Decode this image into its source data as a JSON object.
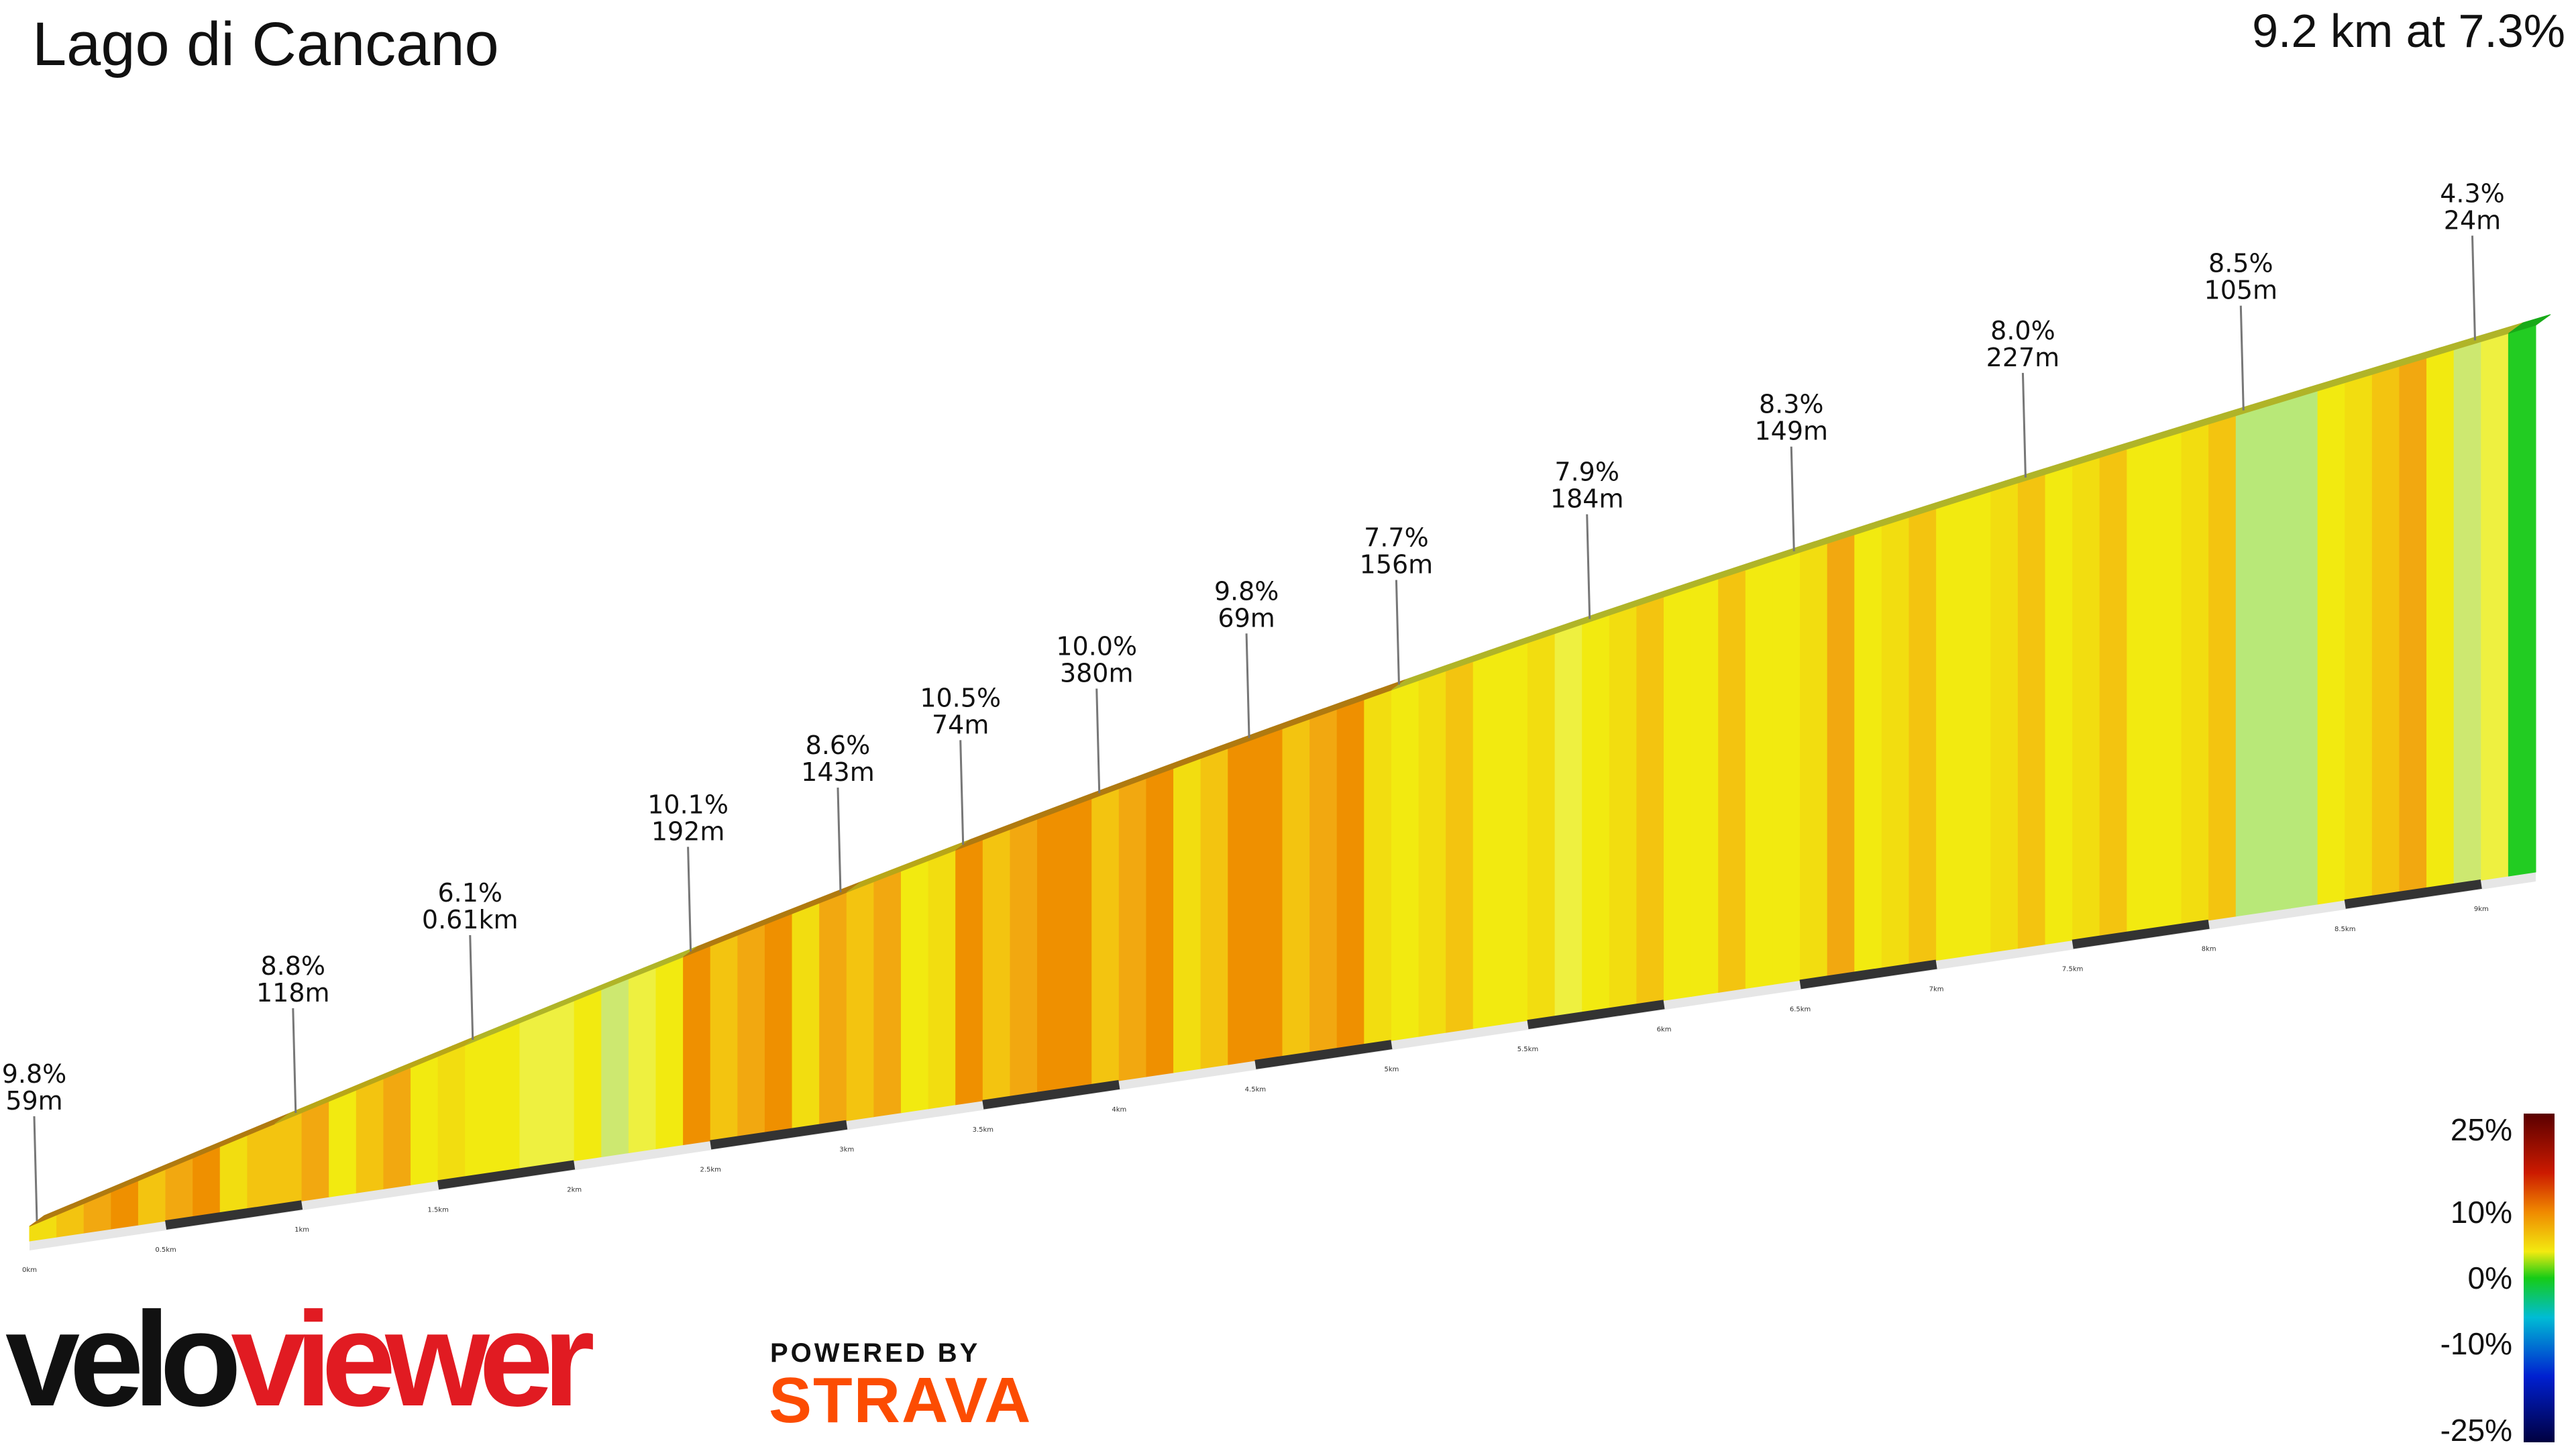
{
  "header": {
    "title": "Lago di Cancano",
    "summary": "9.2 km at 7.3%"
  },
  "chart_data": {
    "type": "area",
    "title": "Lago di Cancano",
    "xlabel": "",
    "ylabel": "",
    "total_km": 9.2,
    "avg_gradient": 7.3,
    "x_ticks": [
      "0km",
      "0.5km",
      "1km",
      "1.5km",
      "2km",
      "2.5km",
      "3km",
      "3.5km",
      "4km",
      "4.5km",
      "5km",
      "5.5km",
      "6km",
      "6.5km",
      "7km",
      "7.5km",
      "8km",
      "8.5km",
      "9km"
    ],
    "segments": [
      {
        "gradient": "9.8%",
        "length": "59m",
        "start_km": 0.0,
        "grade": 9.8
      },
      {
        "gradient": "8.8%",
        "length": "118m",
        "start_km": 0.95,
        "grade": 8.8
      },
      {
        "gradient": "6.1%",
        "length": "0.61km",
        "start_km": 1.6,
        "grade": 6.1
      },
      {
        "gradient": "10.1%",
        "length": "192m",
        "start_km": 2.4,
        "grade": 10.1
      },
      {
        "gradient": "8.6%",
        "length": "143m",
        "start_km": 2.95,
        "grade": 8.6
      },
      {
        "gradient": "10.5%",
        "length": "74m",
        "start_km": 3.4,
        "grade": 10.5
      },
      {
        "gradient": "10.0%",
        "length": "380m",
        "start_km": 3.9,
        "grade": 10.0
      },
      {
        "gradient": "9.8%",
        "length": "69m",
        "start_km": 4.45,
        "grade": 9.8
      },
      {
        "gradient": "7.7%",
        "length": "156m",
        "start_km": 5.0,
        "grade": 7.7
      },
      {
        "gradient": "7.9%",
        "length": "184m",
        "start_km": 5.7,
        "grade": 7.9
      },
      {
        "gradient": "8.3%",
        "length": "149m",
        "start_km": 6.45,
        "grade": 8.3
      },
      {
        "gradient": "8.0%",
        "length": "227m",
        "start_km": 7.3,
        "grade": 8.0
      },
      {
        "gradient": "8.5%",
        "length": "105m",
        "start_km": 8.1,
        "grade": 8.5
      },
      {
        "gradient": "4.3%",
        "length": "24m",
        "start_km": 8.95,
        "grade": 4.3
      }
    ],
    "color_scale": {
      "labels": [
        "25%",
        "10%",
        "0%",
        "-10%",
        "-25%"
      ],
      "values": [
        25,
        10,
        0,
        -10,
        -25
      ]
    }
  },
  "branding": {
    "logo_text": "veloviewer",
    "powered_by": "POWERED BY",
    "strava": "STRAVA"
  },
  "colors": {
    "yellow": "#f2ea10",
    "orange": "#f0a010",
    "green": "#1ccc1c",
    "strava": "#fc4c02"
  }
}
